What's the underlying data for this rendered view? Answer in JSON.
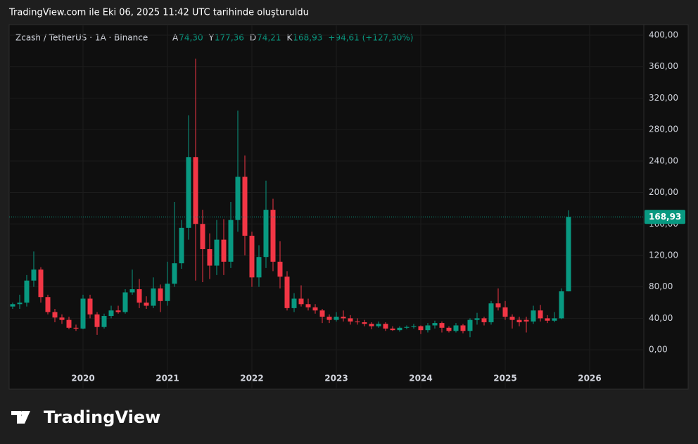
{
  "header": "TradingView.com ile Eki 06, 2025 11:42 UTC tarihinde oluşturuldu",
  "brand": "TradingView",
  "chart_data": {
    "type": "candlestick",
    "title": "Zcash / TetherUS · 1A · Binance",
    "ohlc_legend": [
      {
        "label": "A",
        "value": "74,30"
      },
      {
        "label": "Y",
        "value": "177,36"
      },
      {
        "label": "D",
        "value": "74,21"
      },
      {
        "label": "K",
        "value": "168,93"
      }
    ],
    "change": "+94,61 (+127,30%)",
    "categories": [
      null,
      null,
      null,
      null,
      null,
      null,
      null,
      null,
      null,
      null,
      "2020",
      null,
      null,
      null,
      null,
      null,
      null,
      null,
      null,
      null,
      null,
      null,
      "2021",
      null,
      null,
      null,
      null,
      null,
      null,
      null,
      null,
      null,
      null,
      null,
      "2022",
      null,
      null,
      null,
      null,
      null,
      null,
      null,
      null,
      null,
      null,
      null,
      "2023",
      null,
      null,
      null,
      null,
      null,
      null,
      null,
      null,
      null,
      null,
      null,
      "2024",
      null,
      null,
      null,
      null,
      null,
      null,
      null,
      null,
      null,
      null,
      null,
      "2025",
      null,
      null,
      null,
      null,
      null,
      null,
      null,
      null,
      null,
      null,
      null,
      "2026"
    ],
    "open": [
      55,
      58,
      60,
      88,
      102,
      67,
      48,
      41,
      38,
      28,
      27,
      65,
      45,
      29,
      43,
      50,
      48,
      73,
      77,
      60,
      56,
      78,
      62,
      84,
      110,
      155,
      245,
      160,
      128,
      107,
      140,
      112,
      165,
      220,
      145,
      92,
      118,
      178,
      112,
      93,
      53,
      65,
      58,
      54,
      50,
      42,
      38,
      42,
      40,
      36,
      35,
      33,
      30,
      33,
      27,
      25,
      28,
      29,
      30,
      25,
      31,
      34,
      28,
      24,
      31,
      24,
      38,
      40,
      35,
      59,
      54,
      42,
      38,
      38,
      36,
      50,
      40,
      37,
      40,
      74.3,
      null,
      null,
      null
    ],
    "high": [
      60,
      70,
      95,
      125,
      105,
      70,
      52,
      45,
      42,
      32,
      70,
      70,
      48,
      46,
      56,
      56,
      77,
      102,
      90,
      68,
      92,
      83,
      112,
      188,
      165,
      298,
      370,
      178,
      148,
      165,
      166,
      188,
      304,
      247,
      150,
      133,
      215,
      192,
      138,
      100,
      72,
      82,
      65,
      58,
      52,
      45,
      48,
      50,
      44,
      40,
      38,
      35,
      36,
      35,
      30,
      30,
      31,
      33,
      31,
      34,
      37,
      36,
      30,
      34,
      33,
      40,
      47,
      42,
      62,
      78,
      62,
      45,
      42,
      42,
      56,
      57,
      44,
      48,
      78,
      177.36,
      null,
      null,
      null
    ],
    "low": [
      52,
      52,
      55,
      80,
      60,
      45,
      35,
      33,
      26,
      24,
      26,
      40,
      19,
      27,
      40,
      46,
      46,
      70,
      53,
      52,
      53,
      48,
      56,
      80,
      103,
      140,
      88,
      86,
      90,
      95,
      95,
      104,
      150,
      120,
      80,
      80,
      104,
      100,
      78,
      50,
      48,
      55,
      50,
      46,
      34,
      34,
      36,
      36,
      32,
      32,
      30,
      26,
      28,
      24,
      24,
      23,
      26,
      27,
      20,
      22,
      27,
      22,
      22,
      22,
      21,
      16,
      32,
      31,
      32,
      50,
      38,
      27,
      30,
      22,
      33,
      36,
      34,
      35,
      39,
      74.21,
      null,
      null,
      null
    ],
    "close": [
      58,
      60,
      88,
      102,
      67,
      48,
      41,
      38,
      28,
      27,
      65,
      45,
      29,
      43,
      50,
      48,
      73,
      77,
      60,
      56,
      78,
      62,
      84,
      110,
      155,
      245,
      160,
      128,
      107,
      140,
      112,
      165,
      220,
      145,
      92,
      118,
      178,
      112,
      93,
      53,
      65,
      58,
      54,
      50,
      42,
      38,
      42,
      40,
      36,
      35,
      33,
      30,
      33,
      27,
      25,
      28,
      29,
      30,
      25,
      31,
      34,
      28,
      24,
      31,
      24,
      38,
      40,
      35,
      59,
      54,
      42,
      38,
      35,
      36,
      50,
      40,
      37,
      40,
      74.3,
      168.93,
      null,
      null,
      null
    ],
    "last_price_label": "168,93",
    "up_color": "#089981",
    "down_color": "#f23645",
    "ylim": [
      -50,
      413.4
    ],
    "yticks": [
      {
        "value": 0,
        "label": "0,00"
      },
      {
        "value": 40,
        "label": "40,00"
      },
      {
        "value": 80,
        "label": "80,00"
      },
      {
        "value": 120,
        "label": "120,00"
      },
      {
        "value": 160,
        "label": "160,00"
      },
      {
        "value": 200,
        "label": "200,00"
      },
      {
        "value": 240,
        "label": "240,00"
      },
      {
        "value": 280,
        "label": "280,00"
      },
      {
        "value": 320,
        "label": "320,00"
      },
      {
        "value": 360,
        "label": "360,00"
      },
      {
        "value": 400,
        "label": "400,00"
      }
    ],
    "grid": true
  }
}
